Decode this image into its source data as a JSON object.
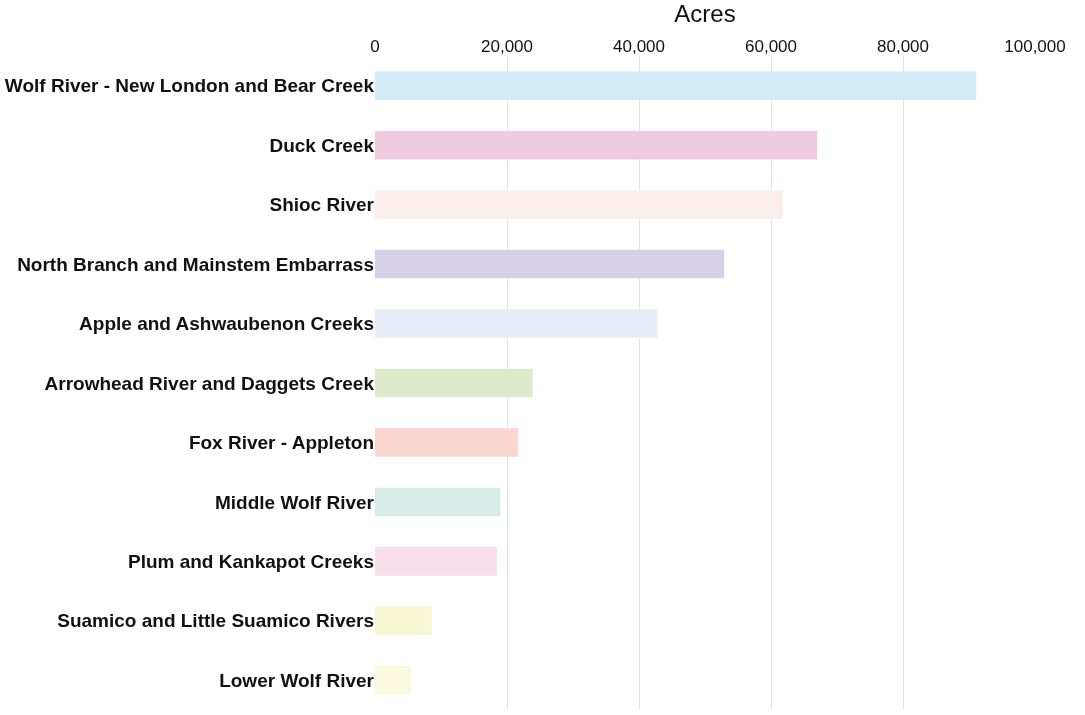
{
  "chart_data": {
    "type": "bar",
    "orientation": "horizontal",
    "xlabel": "Acres",
    "categories": [
      "Wolf River - New London and Bear Creek",
      "Duck Creek",
      "Shioc River",
      "North Branch and Mainstem Embarrass",
      "Apple and Ashwaubenon Creeks",
      "Arrowhead River and Daggets Creek",
      "Fox River - Appleton",
      "Middle Wolf River",
      "Plum and Kankapot Creeks",
      "Suamico and Little Suamico Rivers",
      "Lower Wolf River"
    ],
    "values": [
      91100,
      67000,
      61800,
      52900,
      42800,
      23900,
      21700,
      19000,
      18500,
      8600,
      5500
    ],
    "colors": [
      "#d2ecf7",
      "#efcbe0",
      "#fcefeb",
      "#d5d0e7",
      "#e6edf8",
      "#dbebca",
      "#fbd5d0",
      "#d8ede9",
      "#f8e1ec",
      "#f6f7d2",
      "#fbf8e0"
    ],
    "xlim": [
      0,
      100000
    ],
    "xticks": [
      0,
      {
        "value": 20000,
        "label": "20,000"
      },
      {
        "value": 40000,
        "label": "40,000"
      },
      {
        "value": 60000,
        "label": "60,000"
      },
      {
        "value": 80000,
        "label": "80,000"
      },
      {
        "value": 100000,
        "label": "100,000"
      }
    ],
    "grid": "x"
  }
}
